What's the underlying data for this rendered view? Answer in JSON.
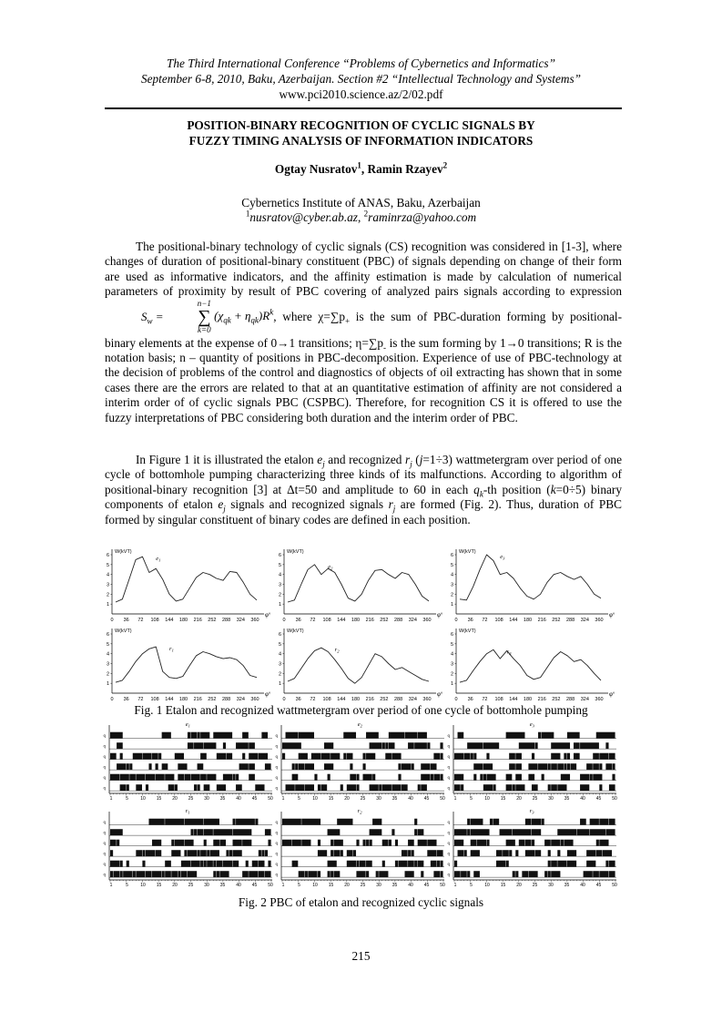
{
  "header": {
    "line1": "The Third International Conference “Problems of Cybernetics and Informatics”",
    "line2": "September 6-8, 2010, Baku, Azerbaijan. Section #2 “Intellectual Technology and Systems”",
    "line3": "www.pci2010.science.az/2/02.pdf"
  },
  "title": {
    "line1": "POSITION-BINARY RECOGNITION OF CYCLIC SIGNALS BY",
    "line2": "FUZZY TIMING ANALYSIS OF INFORMATION INDICATORS"
  },
  "authors": {
    "author1": "Ogtay Nusratov",
    "author1_sup": "1",
    "sep": ", ",
    "author2": "Ramin Rzayev",
    "author2_sup": "2"
  },
  "affiliation": {
    "institute": "Cybernetics Institute of ANAS, Baku, Azerbaijan",
    "email1_sup": "1",
    "email1": "nusratov@cyber.ab.az",
    "email2_sup": "2",
    "email2": "raminrza@yahoo.com"
  },
  "paragraph1": {
    "part1": "The positional-binary technology of cyclic signals (CS) recognition was considered in [1-3], where changes of duration of positional-binary constituent (PBC) of signals depending on change of their form are used as informative indicators, and the affinity estimation is made by calculation of numerical parameters of proximity by result of PBC covering of analyzed pairs signals according to expression",
    "formula_lhs": "S",
    "formula_lhs_sub": "w",
    "formula_upper": "n−1",
    "formula_lower": "k=0",
    "formula_body": "(χ",
    "formula_sub1": "qk",
    "formula_plus": " + η",
    "formula_sub2": "qk",
    "formula_tail": ")R",
    "formula_sup": "k",
    "part2": ", where χ=∑p",
    "part2_sub": "+",
    "part3": " is the sum of PBC-duration forming by positional-binary elements at the expense of 0→1 transitions; η=∑p",
    "part3_sub": "-",
    "part4": " is the sum forming by 1→0 transitions; R is the notation basis; n – quantity of positions in PBC-decomposition. Experience of use of PBC-technology at the decision of problems of the control and diagnostics of objects of oil extracting has shown that in some cases there are the errors are related to that at an quantitative estimation of affinity are not considered a interim order of of cyclic signals PBC (CSPBC). Therefore, for recognition CS it is offered to use the fuzzy interpretations of PBC considering both duration and the interim order of PBC."
  },
  "paragraph2": {
    "t1": "In Figure 1 it is illustrated the etalon ",
    "e": "e",
    "e_sub": "j",
    "t2": " and recognized ",
    "r": "r",
    "r_sub": "j",
    "t3": " (",
    "j": "j",
    "t4": "=1÷3) wattmetergram over period of one cycle of bottomhole pumping characterizing three kinds of its malfunctions. According to algorithm of positional-binary recognition [3] at Δt=50 and amplitude to 60 in each ",
    "q": "q",
    "q_sub": "k",
    "t5": "-th position (",
    "k": "k",
    "t6": "=0÷5) binary components of etalon ",
    "e2": "e",
    "e2_sub": "j",
    "t7": " signals and recognized signals ",
    "r2": "r",
    "r2_sub": "j",
    "t8": " are formed (Fig. 2). Thus, duration of PBC formed by singular constituent of binary codes are defined in each position."
  },
  "figure1": {
    "caption": "Fig. 1 Etalon and recognized wattmetergram over period of one cycle of bottomhole pumping",
    "ylabel": "W(kVT)",
    "xlabel": "φ°",
    "xticks": [
      "0",
      "36",
      "72",
      "108",
      "144",
      "180",
      "216",
      "252",
      "288",
      "324",
      "360"
    ],
    "yticks": [
      "1",
      "2",
      "3",
      "4",
      "5",
      "6"
    ],
    "panels": [
      {
        "label": "e",
        "label_sub": "1"
      },
      {
        "label": "e",
        "label_sub": "2"
      },
      {
        "label": "e",
        "label_sub": "3"
      },
      {
        "label": "r",
        "label_sub": "1"
      },
      {
        "label": "r",
        "label_sub": "2"
      },
      {
        "label": "r",
        "label_sub": "3"
      }
    ]
  },
  "figure2": {
    "caption": "Fig. 2 PBC of etalon and recognized cyclic signals",
    "xticks": [
      "1",
      "5",
      "10",
      "15",
      "20",
      "25",
      "30",
      "35",
      "40",
      "45",
      "50"
    ],
    "row_label": "q",
    "panels": [
      {
        "label": "e",
        "label_sub": "1"
      },
      {
        "label": "e",
        "label_sub": "2"
      },
      {
        "label": "e",
        "label_sub": "3"
      },
      {
        "label": "r",
        "label_sub": "1"
      },
      {
        "label": "r",
        "label_sub": "2"
      },
      {
        "label": "r",
        "label_sub": "3"
      }
    ]
  },
  "page_number": "215"
}
